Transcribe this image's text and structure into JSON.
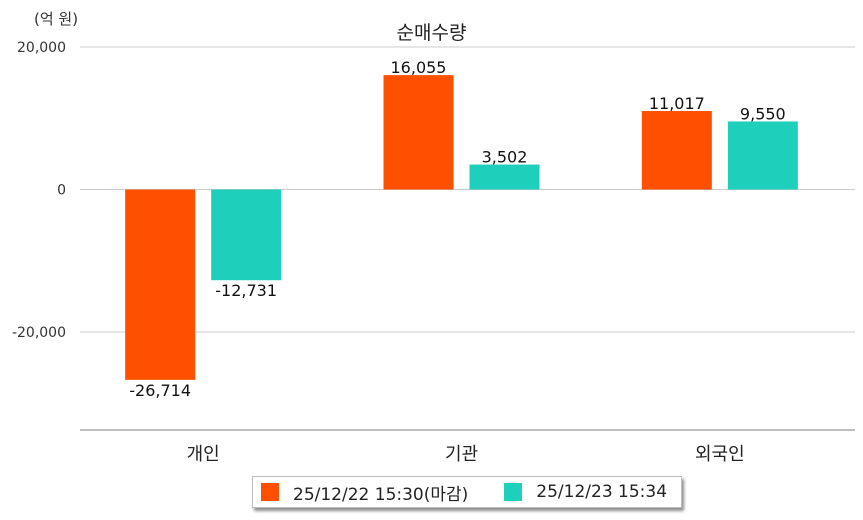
{
  "unit_label": "(억 원)",
  "chart_data": {
    "type": "bar",
    "title": "순매수량",
    "xlabel": "",
    "ylabel": "",
    "categories": [
      "개인",
      "기관",
      "외국인"
    ],
    "series": [
      {
        "name": "25/12/22 15:30(마감)",
        "values": [
          -26714,
          16055,
          11017
        ],
        "labels": [
          "-26,714",
          "16,055",
          "11,017"
        ],
        "color": "#ff5000"
      },
      {
        "name": "25/12/23 15:34",
        "values": [
          -12731,
          3502,
          9550
        ],
        "labels": [
          "-12,731",
          "3,502",
          "9,550"
        ],
        "color": "#1ecfbc"
      }
    ],
    "ylim": [
      -33750,
      20000
    ],
    "yticks": [
      {
        "value": 20000,
        "label": "20,000"
      },
      {
        "value": 0,
        "label": "0"
      },
      {
        "value": -20000,
        "label": "-20,000"
      }
    ],
    "grid": true,
    "legend_position": "bottom"
  }
}
